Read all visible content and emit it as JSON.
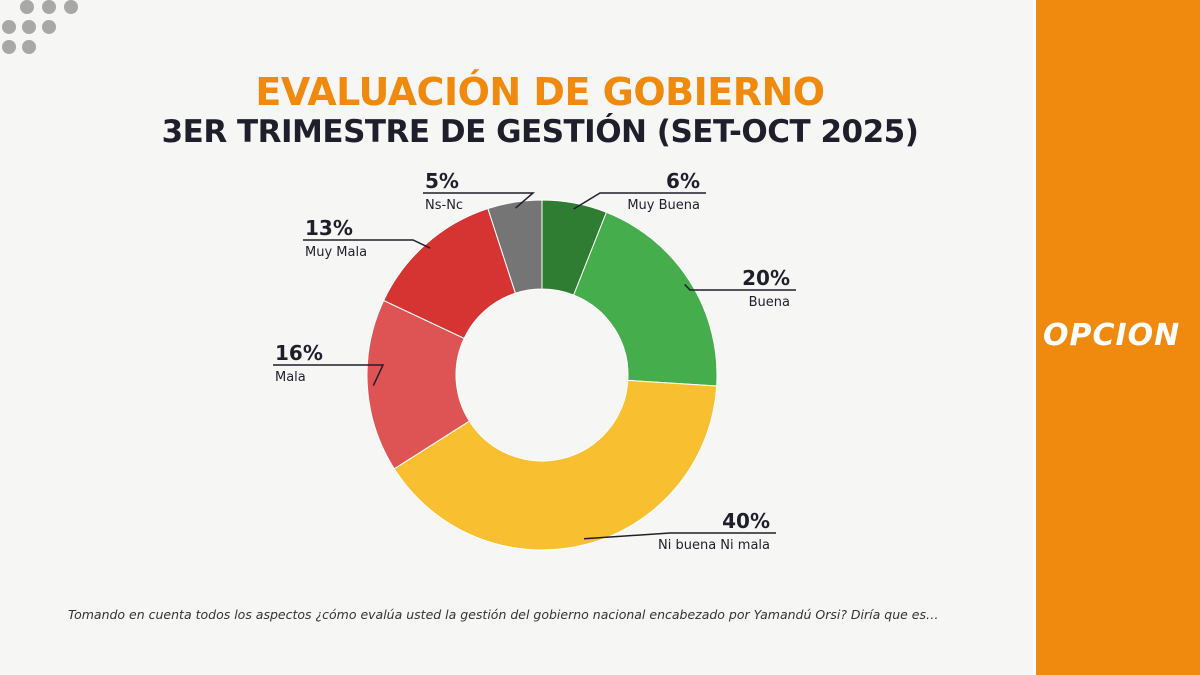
{
  "header": {
    "title": "EVALUACIÓN DE GOBIERNO",
    "subtitle": "3ER TRIMESTRE DE GESTIÓN (SET-OCT 2025)"
  },
  "brand": {
    "name": "OPCION",
    "color": "#ef8a0f"
  },
  "question": "Tomando en cuenta todos los aspectos ¿cómo evalúa usted la gestión del gobierno nacional encabezado por Yamandú Orsi? Diría que es…",
  "chart_data": {
    "type": "pie",
    "donut": true,
    "title": "EVALUACIÓN DE GOBIERNO",
    "subtitle": "3ER TRIMESTRE DE GESTIÓN (SET-OCT 2025)",
    "categories": [
      "Muy Buena",
      "Buena",
      "Ni buena Ni mala",
      "Mala",
      "Muy Mala",
      "Ns-Nc"
    ],
    "values": [
      6,
      20,
      40,
      16,
      13,
      5
    ],
    "labels": [
      "6%",
      "20%",
      "40%",
      "16%",
      "13%",
      "5%"
    ],
    "colors": [
      "#2f7d32",
      "#45ad4b",
      "#f8c030",
      "#de5454",
      "#d63333",
      "#757575"
    ]
  }
}
